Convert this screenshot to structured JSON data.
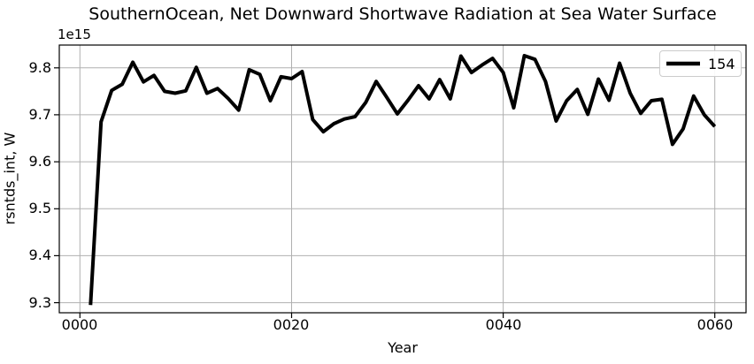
{
  "chart_data": {
    "type": "line",
    "title": "SouthernOcean, Net Downward Shortwave Radiation at Sea Water Surface",
    "xlabel": "Year",
    "ylabel": "rsntds_int, W",
    "y_offset_label": "1e15",
    "grid": true,
    "legend_position": "upper right",
    "legend": [
      {
        "label": "154",
        "color": "#000000"
      }
    ],
    "x": [
      1,
      2,
      3,
      4,
      5,
      6,
      7,
      8,
      9,
      10,
      11,
      12,
      13,
      14,
      15,
      16,
      17,
      18,
      19,
      20,
      21,
      22,
      23,
      24,
      25,
      26,
      27,
      28,
      29,
      30,
      31,
      32,
      33,
      34,
      35,
      36,
      37,
      38,
      39,
      40,
      41,
      42,
      43,
      44,
      45,
      46,
      47,
      48,
      49,
      50,
      51,
      52,
      53,
      54,
      55,
      56,
      57,
      58,
      59,
      60
    ],
    "series": [
      {
        "name": "154",
        "values": [
          9.295,
          9.685,
          9.752,
          9.765,
          9.812,
          9.77,
          9.784,
          9.75,
          9.746,
          9.751,
          9.801,
          9.746,
          9.756,
          9.735,
          9.71,
          9.796,
          9.786,
          9.73,
          9.781,
          9.777,
          9.792,
          9.69,
          9.664,
          9.681,
          9.691,
          9.696,
          9.726,
          9.771,
          9.737,
          9.702,
          9.731,
          9.762,
          9.734,
          9.775,
          9.734,
          9.825,
          9.79,
          9.806,
          9.82,
          9.79,
          9.715,
          9.826,
          9.818,
          9.771,
          9.687,
          9.73,
          9.754,
          9.701,
          9.776,
          9.731,
          9.81,
          9.746,
          9.703,
          9.73,
          9.733,
          9.637,
          9.67,
          9.74,
          9.7,
          9.675
        ]
      }
    ],
    "xticks": {
      "values": [
        0,
        20,
        40,
        60
      ],
      "labels": [
        "0000",
        "0020",
        "0040",
        "0060"
      ]
    },
    "yticks": {
      "values": [
        9.3,
        9.4,
        9.5,
        9.6,
        9.7,
        9.8
      ],
      "labels": [
        "9.3",
        "9.4",
        "9.5",
        "9.6",
        "9.7",
        "9.8"
      ]
    },
    "xlim": [
      -1.95,
      62.95
    ],
    "ylim": [
      9.2785,
      9.8485
    ],
    "colors": {
      "line": "#000000",
      "grid": "#b0b0b0",
      "spine": "#000000",
      "background": "#ffffff"
    }
  }
}
